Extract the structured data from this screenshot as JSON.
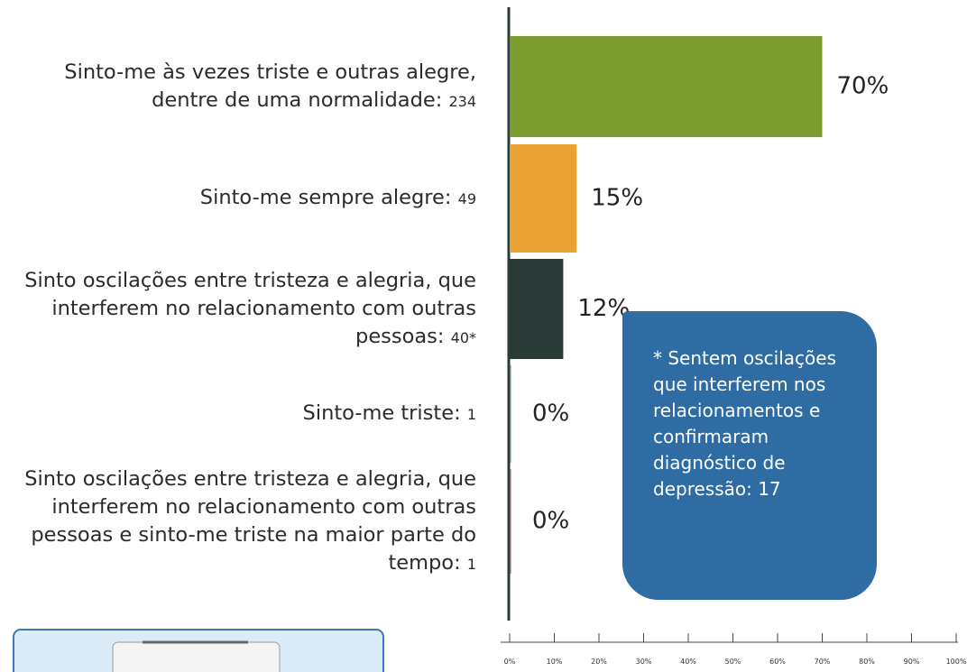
{
  "chart_data": {
    "type": "bar",
    "orientation": "horizontal",
    "categories": [
      "Sinto-me às vezes triste e outras alegre, dentre de uma normalidade:",
      "Sinto-me sempre alegre:",
      "Sinto oscilações entre tristeza e alegria, que interferem no relacionamento com outras pessoas:",
      "Sinto-me triste:",
      "Sinto oscilações entre tristeza e alegria, que interferem no relacionamento com outras pessoas e sinto-me triste na maior parte do tempo:"
    ],
    "counts": [
      "234",
      "49",
      "40*",
      "1",
      "1"
    ],
    "values": [
      70,
      15,
      12,
      0.3,
      0.3
    ],
    "value_labels": [
      "70%",
      "15%",
      "12%",
      "0%",
      "0%"
    ],
    "colors": [
      "#7b9b2f",
      "#e9a233",
      "#2a3a37",
      "#61808a",
      "#8c5d72"
    ],
    "xlim": [
      0,
      100
    ],
    "xticks": [
      {
        "value": 0,
        "label": "0%"
      },
      {
        "value": 10,
        "label": "10%"
      },
      {
        "value": 20,
        "label": "20%"
      },
      {
        "value": 30,
        "label": "30%"
      },
      {
        "value": 40,
        "label": "40%"
      },
      {
        "value": 50,
        "label": "50%"
      },
      {
        "value": 60,
        "label": "60%"
      },
      {
        "value": 70,
        "label": "70%"
      },
      {
        "value": 80,
        "label": "80%"
      },
      {
        "value": 90,
        "label": "90%"
      },
      {
        "value": 100,
        "label": "100%"
      }
    ],
    "annotation": "* Sentem oscilações que interferem nos relacionamentos e confirmaram diagnóstico de depressão: 17"
  }
}
